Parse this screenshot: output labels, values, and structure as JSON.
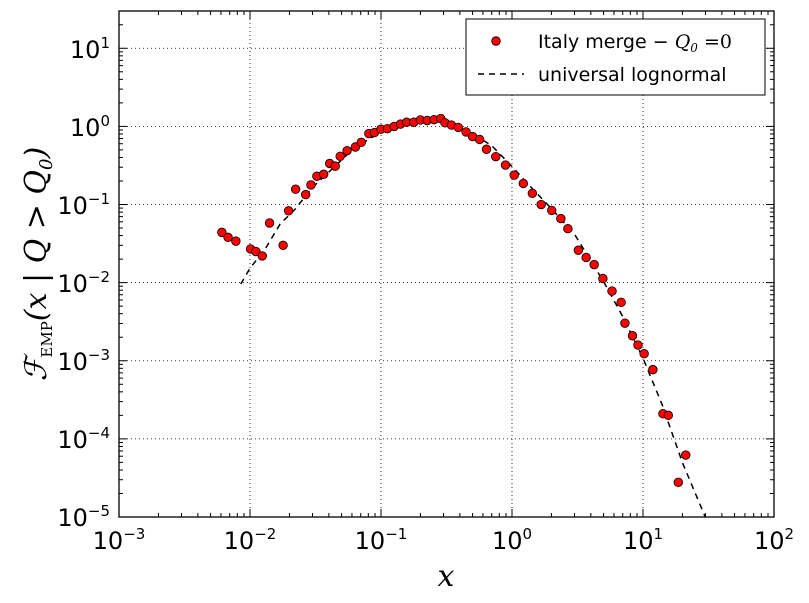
{
  "chart_data": {
    "type": "scatter",
    "title": "",
    "xlabel": "x",
    "ylabel": {
      "script_F": "ℱ",
      "subscript": "EMP",
      "condition": "(x | Q > Q",
      "q_sub": "0",
      "close": ")"
    },
    "xscale": "log",
    "yscale": "log",
    "xlim": [
      0.001,
      100
    ],
    "ylim": [
      1e-05,
      30
    ],
    "grid": true,
    "legend_position": "top-right",
    "x_ticks": [
      {
        "base": "10",
        "exp": "−3"
      },
      {
        "base": "10",
        "exp": "−2"
      },
      {
        "base": "10",
        "exp": "−1"
      },
      {
        "base": "10",
        "exp": "0"
      },
      {
        "base": "10",
        "exp": "1"
      },
      {
        "base": "10",
        "exp": "2"
      }
    ],
    "y_ticks": [
      {
        "base": "10",
        "exp": "−5"
      },
      {
        "base": "10",
        "exp": "−4"
      },
      {
        "base": "10",
        "exp": "−3"
      },
      {
        "base": "10",
        "exp": "−2"
      },
      {
        "base": "10",
        "exp": "−1"
      },
      {
        "base": "10",
        "exp": "0"
      },
      {
        "base": "10",
        "exp": "1"
      }
    ],
    "legend": {
      "series1_label_text": "Italy merge − ",
      "series1_label_math": "Q",
      "series1_label_sub": "0",
      "series1_label_eq": " =0",
      "series2_label": "universal lognormal"
    },
    "series": [
      {
        "name": "Italy merge − Q0 =0",
        "marker": "circle",
        "color": "#ff0000",
        "edge_color": "#000000",
        "points": [
          [
            0.0061,
            0.044
          ],
          [
            0.0068,
            0.038
          ],
          [
            0.0078,
            0.034
          ],
          [
            0.0101,
            0.027
          ],
          [
            0.0111,
            0.025
          ],
          [
            0.0124,
            0.022
          ],
          [
            0.0141,
            0.058
          ],
          [
            0.0179,
            0.03
          ],
          [
            0.0197,
            0.083
          ],
          [
            0.0223,
            0.157
          ],
          [
            0.0266,
            0.134
          ],
          [
            0.0292,
            0.178
          ],
          [
            0.0324,
            0.23
          ],
          [
            0.0365,
            0.244
          ],
          [
            0.0406,
            0.335
          ],
          [
            0.0447,
            0.31
          ],
          [
            0.0488,
            0.414
          ],
          [
            0.0551,
            0.489
          ],
          [
            0.0638,
            0.545
          ],
          [
            0.0707,
            0.625
          ],
          [
            0.0808,
            0.81
          ],
          [
            0.0891,
            0.833
          ],
          [
            0.1,
            0.92
          ],
          [
            0.112,
            0.936
          ],
          [
            0.126,
            1.0
          ],
          [
            0.141,
            1.07
          ],
          [
            0.157,
            1.13
          ],
          [
            0.178,
            1.13
          ],
          [
            0.2,
            1.21
          ],
          [
            0.225,
            1.19
          ],
          [
            0.254,
            1.22
          ],
          [
            0.286,
            1.26
          ],
          [
            0.308,
            1.11
          ],
          [
            0.345,
            1.04
          ],
          [
            0.389,
            0.97
          ],
          [
            0.446,
            0.85
          ],
          [
            0.5,
            0.74
          ],
          [
            0.566,
            0.68
          ],
          [
            0.639,
            0.51
          ],
          [
            0.752,
            0.41
          ],
          [
            0.892,
            0.32
          ],
          [
            1.04,
            0.238
          ],
          [
            1.22,
            0.186
          ],
          [
            1.43,
            0.139
          ],
          [
            1.67,
            0.1
          ],
          [
            2.01,
            0.084
          ],
          [
            2.36,
            0.066
          ],
          [
            2.67,
            0.049
          ],
          [
            3.21,
            0.026
          ],
          [
            3.68,
            0.021
          ],
          [
            4.24,
            0.017
          ],
          [
            4.94,
            0.0113
          ],
          [
            5.8,
            0.0078
          ],
          [
            6.81,
            0.0056
          ],
          [
            7.28,
            0.00303
          ],
          [
            8.31,
            0.00209
          ],
          [
            9.16,
            0.00159
          ],
          [
            10.2,
            0.00123
          ],
          [
            11.9,
            0.00077
          ],
          [
            14.2,
            0.00021
          ],
          [
            15.6,
            0.0002
          ],
          [
            18.6,
            2.78e-05
          ],
          [
            21.2,
            6.21e-05
          ]
        ]
      },
      {
        "name": "universal lognormal",
        "style": "dashed",
        "color": "#000000",
        "points": [
          [
            0.0085,
            0.0096
          ],
          [
            0.01,
            0.0153
          ],
          [
            0.013,
            0.0266
          ],
          [
            0.017,
            0.0565
          ],
          [
            0.022,
            0.0863
          ],
          [
            0.03,
            0.166
          ],
          [
            0.04,
            0.26
          ],
          [
            0.055,
            0.434
          ],
          [
            0.075,
            0.634
          ],
          [
            0.1,
            0.843
          ],
          [
            0.14,
            1.03
          ],
          [
            0.2,
            1.23
          ],
          [
            0.27,
            1.23
          ],
          [
            0.35,
            1.14
          ],
          [
            0.5,
            0.802
          ],
          [
            0.7,
            0.567
          ],
          [
            1.0,
            0.307
          ],
          [
            1.4,
            0.166
          ],
          [
            2.0,
            0.0885
          ],
          [
            3.0,
            0.0417
          ],
          [
            4.0,
            0.019
          ],
          [
            5.0,
            0.0103
          ],
          [
            7.0,
            0.00369
          ],
          [
            10.0,
            0.00108
          ],
          [
            14.0,
            0.000274
          ],
          [
            20.0,
            4.96e-05
          ],
          [
            30.0,
            9.84e-06
          ]
        ]
      }
    ]
  }
}
